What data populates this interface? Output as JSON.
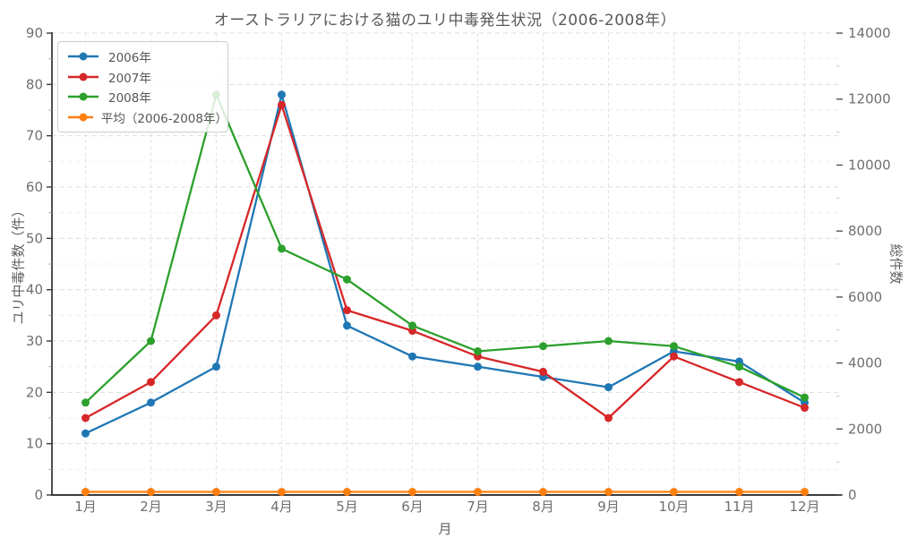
{
  "chart_data": {
    "type": "line",
    "title": "オーストラリアにおける猫のユリ中毒発生状況（2006-2008年）",
    "xlabel": "月",
    "ylabel_left": "ユリ中毒件数（件）",
    "ylabel_right": "総件数",
    "categories": [
      "1月",
      "2月",
      "3月",
      "4月",
      "5月",
      "6月",
      "7月",
      "8月",
      "9月",
      "10月",
      "11月",
      "12月"
    ],
    "left_axis": {
      "range": [
        0,
        90
      ],
      "ticks": [
        0,
        10,
        20,
        30,
        40,
        50,
        60,
        70,
        80,
        90
      ]
    },
    "right_axis": {
      "range": [
        0,
        14000
      ],
      "ticks": [
        0,
        2000,
        4000,
        6000,
        8000,
        10000,
        12000,
        14000
      ]
    },
    "grid": true,
    "grid_style": "dashed",
    "legend_position": "upper-left",
    "series": [
      {
        "name": "2006年",
        "color": "#1f77b4",
        "axis": "left",
        "values": [
          12,
          18,
          25,
          78,
          33,
          27,
          25,
          23,
          21,
          28,
          26,
          18
        ]
      },
      {
        "name": "2007年",
        "color": "#d62728",
        "axis": "left",
        "values": [
          15,
          22,
          35,
          76,
          36,
          32,
          27,
          24,
          15,
          27,
          22,
          17
        ]
      },
      {
        "name": "2008年",
        "color": "#2ca02c",
        "axis": "left",
        "values": [
          18,
          30,
          78,
          48,
          42,
          33,
          28,
          29,
          30,
          29,
          25,
          19
        ]
      },
      {
        "name": "平均（2006-2008年）",
        "color": "#ff7f0e",
        "axis": "right",
        "values": [
          15.0,
          23.3,
          46.0,
          67.3,
          37.0,
          30.7,
          26.7,
          25.3,
          22.0,
          28.0,
          24.3,
          18.0
        ]
      }
    ]
  }
}
